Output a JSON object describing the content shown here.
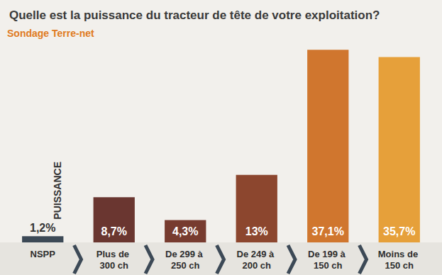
{
  "chart_data": {
    "type": "bar",
    "title": "Quelle est la puissance du tracteur de tête de votre exploitation?",
    "subtitle": "Sondage Terre-net",
    "annotations": [
      "PUISSANCE"
    ],
    "categories": [
      "NSPP",
      "Plus de 300 ch",
      "De 299 à 250 ch",
      "De 249 à 200 ch",
      "De 199 à 150 ch",
      "Moins de 150 ch"
    ],
    "values": [
      1.2,
      8.7,
      4.3,
      13,
      37.1,
      35.7
    ],
    "value_labels": [
      "1,2%",
      "8,7%",
      "4,3%",
      "13%",
      "37,1%",
      "35,7%"
    ],
    "colors": [
      "#3c4956",
      "#6a3630",
      "#773b2f",
      "#8c462e",
      "#d0762e",
      "#e6a03a"
    ],
    "ylim": [
      0,
      38.5
    ],
    "grid": false,
    "data_labels": true,
    "tick_labels": "x"
  }
}
